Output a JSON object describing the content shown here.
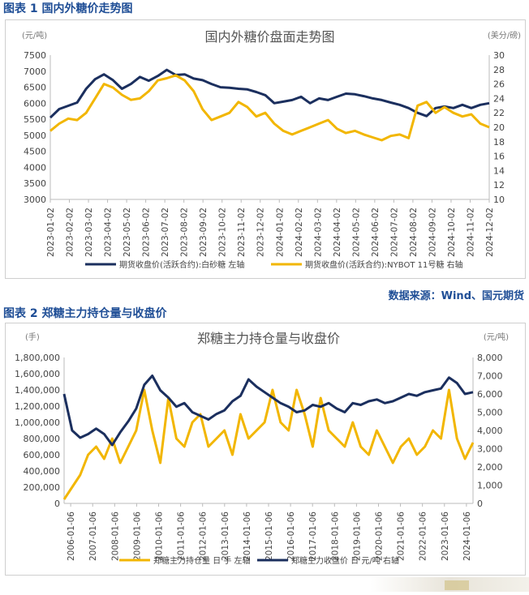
{
  "figure1": {
    "heading": "图表 1 国内外糖价走势图",
    "chart_data": {
      "type": "line",
      "title": "国内外糖价盘面走势图",
      "left_unit": "(元/吨)",
      "right_unit": "(美分/磅)",
      "ylim": [
        3000,
        7500
      ],
      "y2lim": [
        10,
        30
      ],
      "y_ticks": [
        "3000",
        "3500",
        "4000",
        "4500",
        "5000",
        "5500",
        "6000",
        "6500",
        "7000",
        "7500"
      ],
      "y2_ticks": [
        "10",
        "12",
        "14",
        "16",
        "18",
        "20",
        "22",
        "24",
        "26",
        "28",
        "30"
      ],
      "x_ticks": [
        "2023-01-02",
        "2023-02-02",
        "2023-03-02",
        "2023-04-02",
        "2023-05-02",
        "2023-06-02",
        "2023-07-02",
        "2023-08-02",
        "2023-09-02",
        "2023-10-02",
        "2023-11-02",
        "2023-12-02",
        "2024-01-02",
        "2024-02-02",
        "2024-03-02",
        "2024-04-02",
        "2024-05-02",
        "2024-06-02",
        "2024-07-02",
        "2024-08-02",
        "2024-09-02",
        "2024-10-02",
        "2024-11-02",
        "2024-12-02"
      ],
      "series": [
        {
          "name": "期货收盘价(活跃合约):白砂糖 左轴",
          "color": "#1b2f5e",
          "axis": "left",
          "values": [
            5550,
            5820,
            5920,
            6020,
            6450,
            6750,
            6900,
            6720,
            6450,
            6600,
            6820,
            6700,
            6850,
            7040,
            6880,
            6900,
            6770,
            6720,
            6600,
            6500,
            6480,
            6450,
            6430,
            6350,
            6250,
            6000,
            6050,
            6100,
            6200,
            6000,
            6150,
            6100,
            6200,
            6300,
            6280,
            6220,
            6150,
            6100,
            6020,
            5950,
            5850,
            5700,
            5600,
            5850,
            5900,
            5850,
            5950,
            5850,
            5950,
            6000
          ]
        },
        {
          "name": "期货收盘价(活跃合约):NYBOT 11号糖 右轴",
          "color": "#f2b600",
          "axis": "right",
          "values": [
            19.5,
            20.5,
            21.2,
            21.0,
            22.0,
            24.0,
            26.0,
            25.5,
            24.5,
            23.8,
            24.0,
            25.0,
            26.5,
            26.8,
            27.2,
            26.5,
            25.0,
            22.5,
            21.0,
            21.5,
            22.0,
            23.5,
            22.8,
            21.5,
            22.0,
            20.5,
            19.5,
            19.0,
            19.5,
            20.0,
            20.5,
            21.0,
            19.8,
            19.2,
            19.5,
            19.0,
            18.6,
            18.2,
            18.8,
            19.0,
            18.5,
            23.0,
            23.5,
            22.0,
            22.8,
            22.0,
            21.5,
            21.8,
            20.5,
            20.0
          ]
        }
      ]
    },
    "source": "数据来源：Wind、国元期货"
  },
  "figure2": {
    "heading": "图表 2 郑糖主力持仓量与收盘价",
    "chart_data": {
      "type": "line",
      "title": "郑糖主力持仓量与收盘价",
      "left_unit": "(手)",
      "right_unit": "(元/吨)",
      "ylim": [
        0,
        1800000
      ],
      "y2lim": [
        0,
        8000
      ],
      "y_ticks": [
        "0",
        "200,000",
        "400,000",
        "600,000",
        "800,000",
        "1,000,000",
        "1,200,000",
        "1,400,000",
        "1,600,000",
        "1,800,000"
      ],
      "y2_ticks": [
        "0",
        "1,000",
        "2,000",
        "3,000",
        "4,000",
        "5,000",
        "6,000",
        "7,000",
        "8,000"
      ],
      "x_ticks": [
        "2006-01-06",
        "2007-01-06",
        "2008-01-06",
        "2009-01-06",
        "2010-01-06",
        "2011-01-06",
        "2012-01-06",
        "2013-01-06",
        "2014-01-06",
        "2015-01-06",
        "2016-01-06",
        "2017-01-06",
        "2018-01-06",
        "2019-01-06",
        "2020-01-06",
        "2021-01-06",
        "2022-01-06",
        "2023-01-06",
        "2024-01-06"
      ],
      "series": [
        {
          "name": "郑糖主力持仓量 日 手 左轴",
          "color": "#f2b600",
          "axis": "left",
          "values": [
            50000,
            200000,
            350000,
            600000,
            700000,
            550000,
            800000,
            500000,
            700000,
            900000,
            1400000,
            900000,
            500000,
            1300000,
            800000,
            700000,
            1000000,
            1100000,
            700000,
            800000,
            900000,
            600000,
            1100000,
            800000,
            900000,
            1000000,
            1400000,
            1000000,
            900000,
            1400000,
            1100000,
            700000,
            1300000,
            900000,
            800000,
            700000,
            1000000,
            700000,
            600000,
            900000,
            700000,
            500000,
            700000,
            800000,
            600000,
            700000,
            900000,
            800000,
            1400000,
            800000,
            550000,
            750000
          ]
        },
        {
          "name": "郑糖主力收盘价 日 元/吨 右轴",
          "color": "#1b2f5e",
          "axis": "right",
          "values": [
            6000,
            4000,
            3600,
            3800,
            4100,
            3800,
            3200,
            3900,
            4500,
            5200,
            6500,
            7000,
            6200,
            5800,
            5300,
            5500,
            5000,
            4800,
            4600,
            4900,
            5100,
            5600,
            5900,
            6800,
            6400,
            6100,
            5800,
            5500,
            5300,
            5000,
            5100,
            5400,
            5300,
            5500,
            5200,
            5000,
            5500,
            5400,
            5600,
            5700,
            5500,
            5600,
            5800,
            6000,
            5900,
            6100,
            6200,
            6300,
            6900,
            6600,
            6000,
            6100
          ]
        }
      ]
    }
  }
}
